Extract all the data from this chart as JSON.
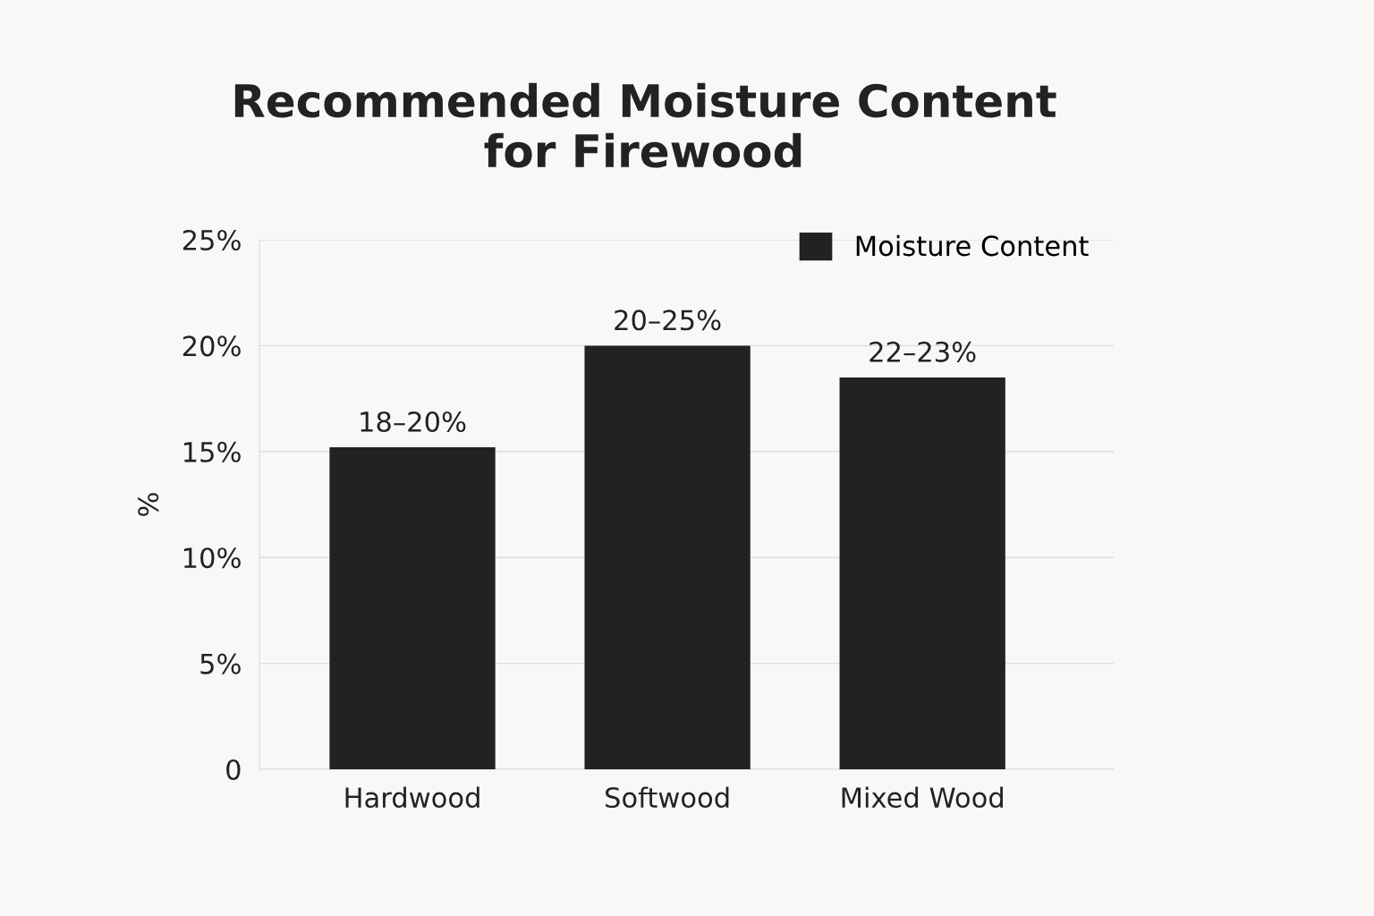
{
  "chart_data": {
    "type": "bar",
    "title": "Recommended Moisture Content\nfor Firewood",
    "ylabel": "%",
    "categories": [
      "Hardwood",
      "Softwood",
      "Mixed Wood"
    ],
    "series": [
      {
        "name": "Moisture Content",
        "color": "#222222",
        "values": [
          15.2,
          20,
          18.5
        ]
      }
    ],
    "annotations": [
      {
        "text": "18–20%",
        "x": "Hardwood",
        "y": 15.2
      },
      {
        "text": "20–25%",
        "x": "Softwood",
        "y": 20
      },
      {
        "text": "22–23%",
        "x": "Mixed Wood",
        "y": 18.5
      }
    ],
    "ylim": [
      0,
      25
    ],
    "yticks": [
      0,
      {
        "value": 5,
        "label": "5%"
      },
      {
        "value": 10,
        "label": "10%"
      },
      {
        "value": 15,
        "label": "15%"
      },
      {
        "value": 20,
        "label": "20%"
      },
      {
        "value": 25,
        "label": "25%"
      }
    ],
    "grid": "y",
    "legend": "top right"
  }
}
